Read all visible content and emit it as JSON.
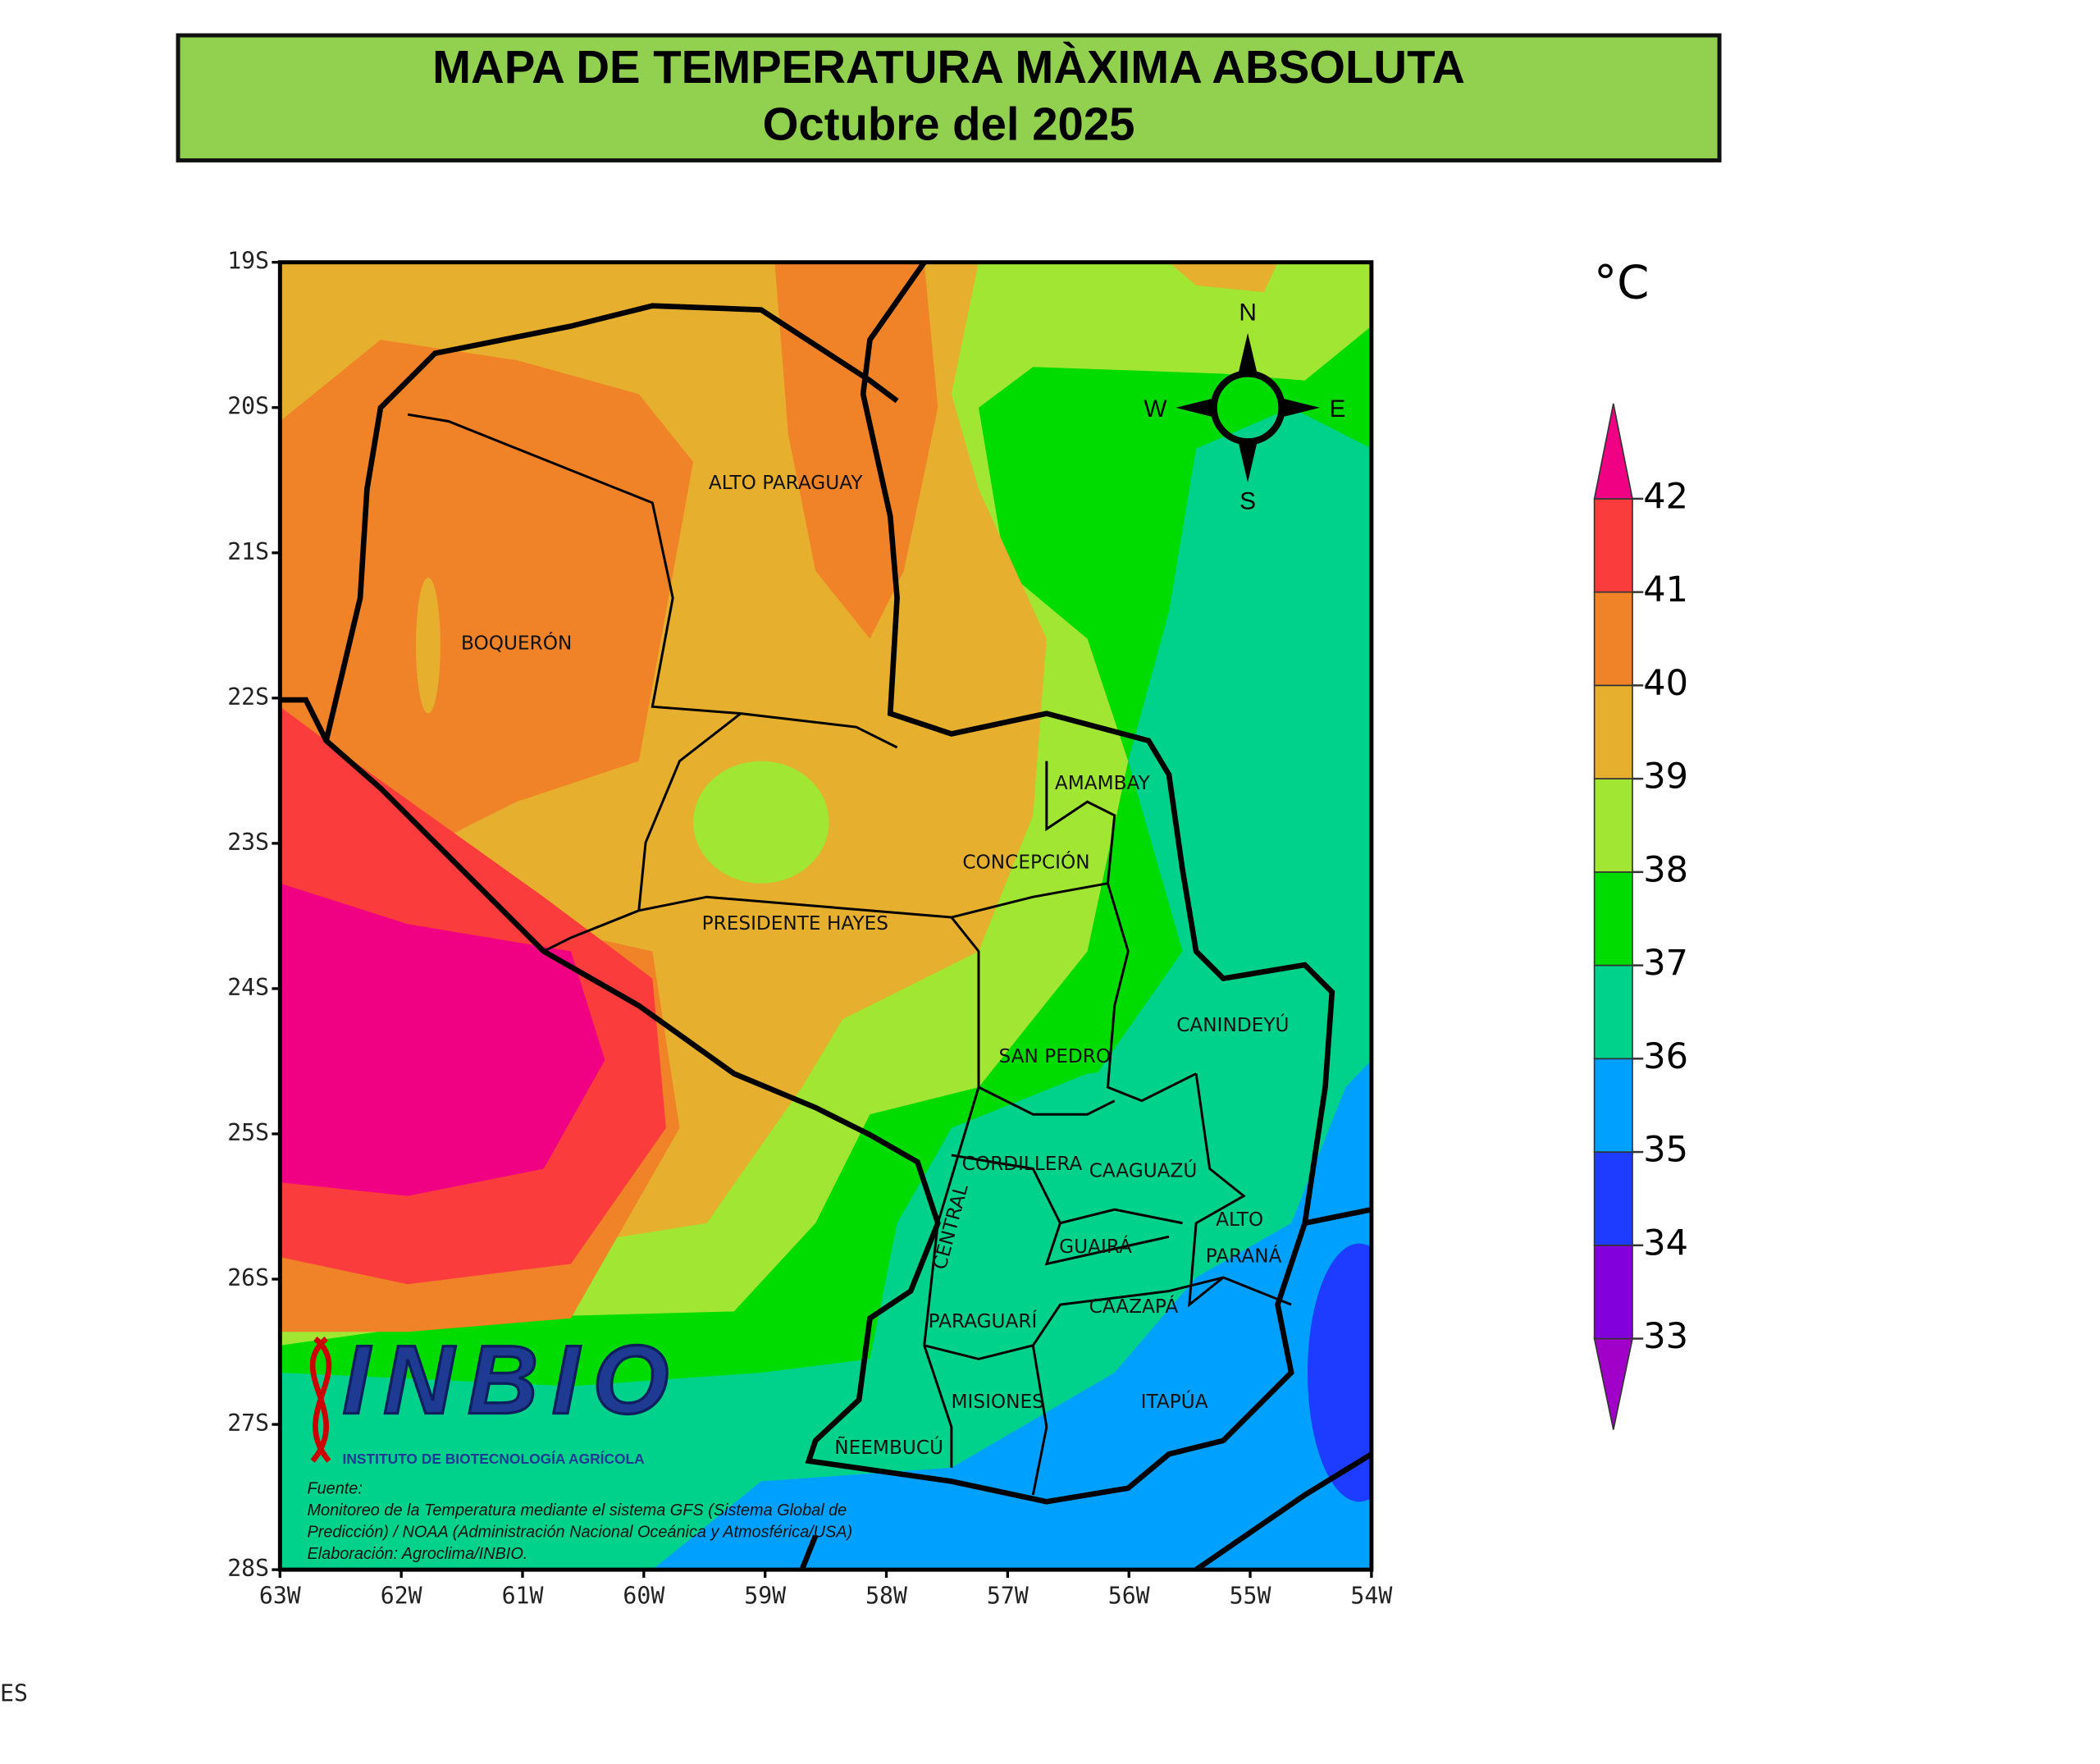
{
  "header": {
    "title": "MAPA DE TEMPERATURA MÀXIMA ABSOLUTA",
    "subtitle": "Octubre del 2025"
  },
  "map": {
    "lat_labels": [
      "19S",
      "20S",
      "21S",
      "22S",
      "23S",
      "24S",
      "25S",
      "26S",
      "27S",
      "28S"
    ],
    "lon_labels": [
      "63W",
      "62W",
      "61W",
      "60W",
      "59W",
      "58W",
      "57W",
      "56W",
      "55W",
      "54W"
    ],
    "labels": [
      "ALTO PARAGUAY",
      "BOQUERÓN",
      "AMAMBAY",
      "CONCEPCIÓN",
      "PRESIDENTE HAYES",
      "CANINDEYÚ",
      "SAN PEDRO",
      "CORDILLERA",
      "CAAGUAZÚ",
      "ALTO",
      "PARANÁ",
      "CENTRAL",
      "GUAIRÁ",
      "CAAZAPÁ",
      "PARAGUARÍ",
      "MISIONES",
      "ITAPÚA",
      "ÑEEMBUCÚ"
    ],
    "compass": {
      "n": "N",
      "w": "W",
      "e": "E",
      "s": "S"
    }
  },
  "legend": {
    "unit": "°C",
    "values": [
      33,
      34,
      35,
      36,
      37,
      38,
      39,
      40,
      41,
      42
    ],
    "colors": [
      "#a000c8",
      "#8200dc",
      "#1e3cff",
      "#00a0ff",
      "#00d28c",
      "#00dc00",
      "#a0e632",
      "#e6af2d",
      "#f08228",
      "#fa3c3c",
      "#f00082"
    ]
  },
  "logo": {
    "name": "INBIO",
    "subtitle": "INSTITUTO DE BIOTECNOLOGÍA AGRÍCOLA"
  },
  "source": [
    "Fuente:",
    "Monitoreo de la Temperatura mediante el sistema GFS (Sistema Global de",
    "Predicción) / NOAA (Administración Nacional Oceánica y Atmosférica/USA)",
    "Elaboración: Agroclima/INBIO."
  ],
  "footer_fragment": "ES"
}
